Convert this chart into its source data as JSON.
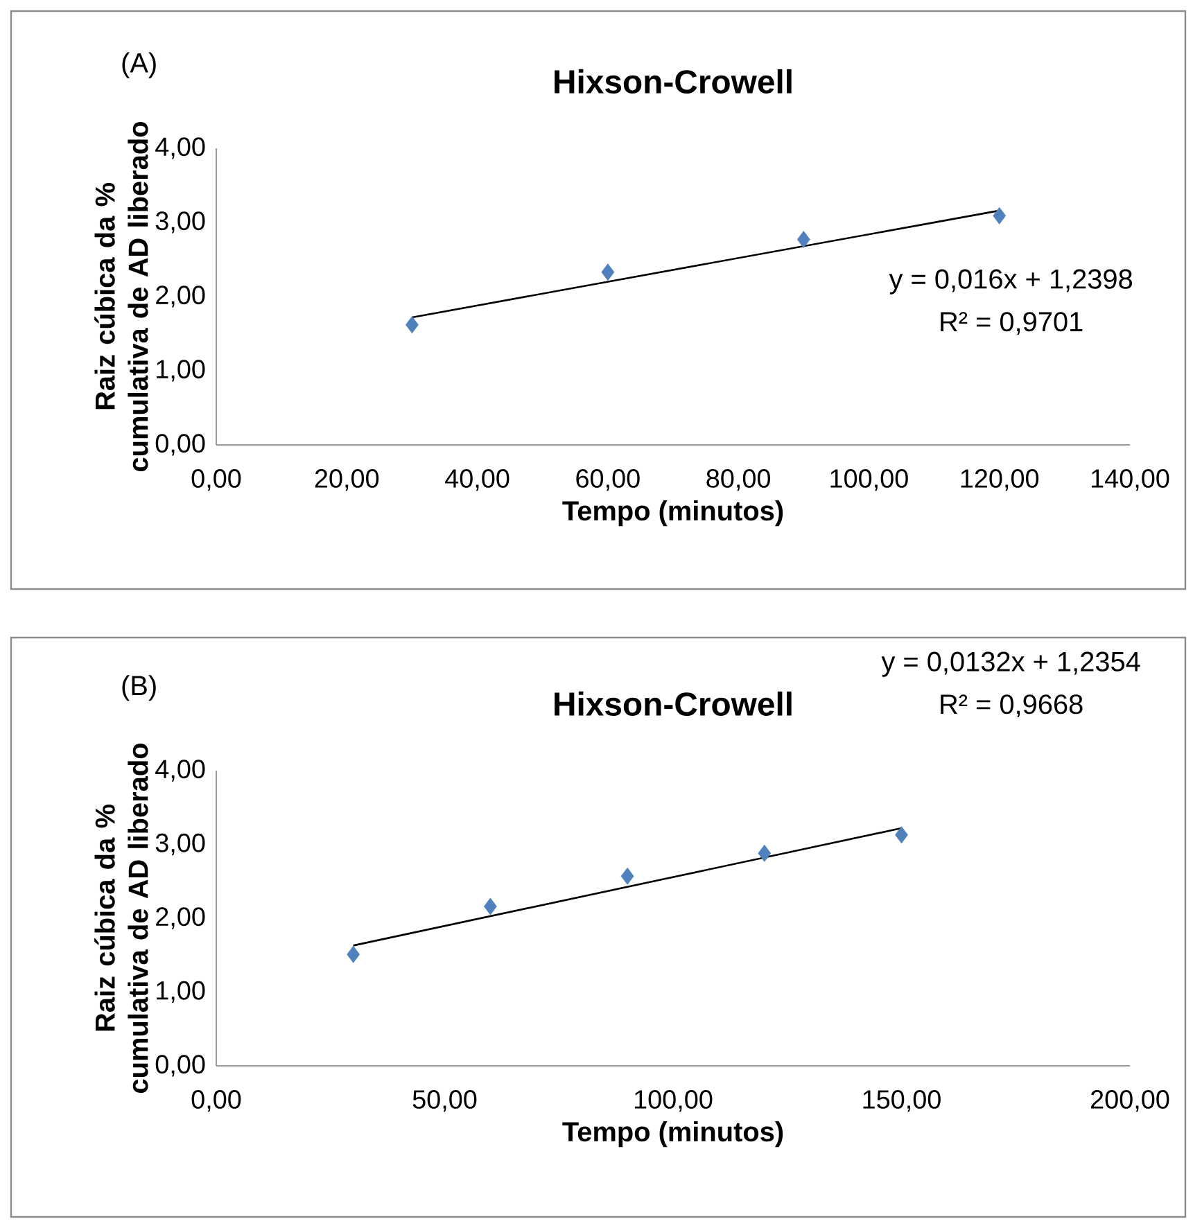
{
  "chart_data": [
    {
      "type": "scatter",
      "title": "Hixson-Crowell",
      "xlabel": "Tempo (minutos)",
      "ylabel": "Raiz cúbica da % cumulativa de AD liberado",
      "series": [
        {
          "color": "#4f81bd",
          "marker": "diamond",
          "x": [
            30,
            60,
            90,
            120
          ],
          "values": [
            1.62,
            2.33,
            2.77,
            3.09
          ]
        },
        {
          "type": "line",
          "color": "#000000",
          "marker": "none",
          "line_style": "solid",
          "x": [
            30,
            120
          ],
          "values": [
            1.72,
            3.16
          ]
        }
      ],
      "xlim": [
        0,
        140
      ],
      "ylim": [
        0,
        4
      ],
      "xticks": [
        {
          "value": 0,
          "label": "0,00"
        },
        {
          "value": 20,
          "label": "20,00"
        },
        {
          "value": 40,
          "label": "40,00"
        },
        {
          "value": 60,
          "label": "60,00"
        },
        {
          "value": 80,
          "label": "80,00"
        },
        {
          "value": 100,
          "label": "100,00"
        },
        {
          "value": 120,
          "label": "120,00"
        },
        {
          "value": 140,
          "label": "140,00"
        }
      ],
      "yticks": [
        {
          "value": 0,
          "label": "0,00"
        },
        {
          "value": 1,
          "label": "1,00"
        },
        {
          "value": 2,
          "label": "2,00"
        },
        {
          "value": 3,
          "label": "3,00"
        },
        {
          "value": 4,
          "label": "4,00"
        }
      ],
      "annotations": [
        "(A)",
        "y = 0,016x + 1,2398",
        "R² = 0,9701"
      ]
    },
    {
      "type": "scatter",
      "title": "Hixson-Crowell",
      "xlabel": "Tempo (minutos)",
      "ylabel": "Raiz cúbica da % cumulativa de AD liberado",
      "series": [
        {
          "color": "#4f81bd",
          "marker": "diamond",
          "x": [
            30,
            60,
            90,
            120,
            150
          ],
          "values": [
            1.51,
            2.16,
            2.57,
            2.88,
            3.13
          ]
        },
        {
          "type": "line",
          "color": "#000000",
          "marker": "none",
          "line_style": "solid",
          "x": [
            30,
            150
          ],
          "values": [
            1.63,
            3.22
          ]
        }
      ],
      "xlim": [
        0,
        200
      ],
      "ylim": [
        0,
        4
      ],
      "xticks": [
        {
          "value": 0,
          "label": "0,00"
        },
        {
          "value": 50,
          "label": "50,00"
        },
        {
          "value": 100,
          "label": "100,00"
        },
        {
          "value": 150,
          "label": "150,00"
        },
        {
          "value": 200,
          "label": "200,00"
        }
      ],
      "yticks": [
        {
          "value": 0,
          "label": "0,00"
        },
        {
          "value": 1,
          "label": "1,00"
        },
        {
          "value": 2,
          "label": "2,00"
        },
        {
          "value": 3,
          "label": "3,00"
        },
        {
          "value": 4,
          "label": "4,00"
        }
      ],
      "annotations": [
        "(B)",
        "y = 0,0132x + 1,2354",
        "R² = 0,9668"
      ]
    }
  ]
}
